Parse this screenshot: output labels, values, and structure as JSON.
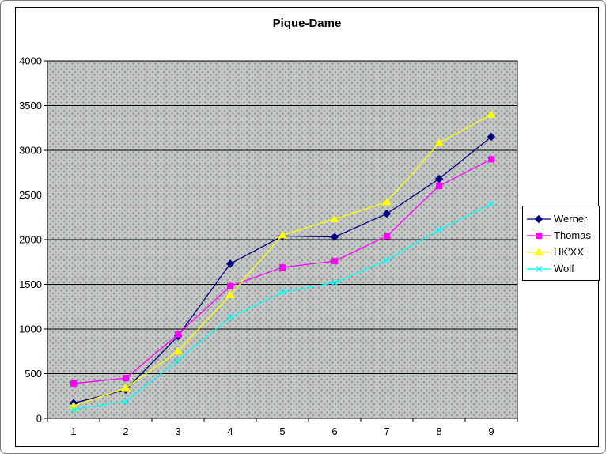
{
  "page": {
    "background": "#ffffff",
    "outer_border_color": "#7a7a7a",
    "frame_border_color": "#000000"
  },
  "chart_data": {
    "type": "line",
    "title": "Pique-Dame",
    "categories": [
      "1",
      "2",
      "3",
      "4",
      "5",
      "6",
      "7",
      "8",
      "9"
    ],
    "series": [
      {
        "name": "Werner",
        "color": "#000080",
        "marker": "diamond",
        "values": [
          170,
          320,
          920,
          1730,
          2040,
          2030,
          2290,
          2680,
          3150
        ]
      },
      {
        "name": "Thomas",
        "color": "#ff00ff",
        "marker": "square",
        "values": [
          390,
          450,
          940,
          1480,
          1690,
          1760,
          2040,
          2600,
          2900
        ]
      },
      {
        "name": "HK'XX",
        "color": "#ffff00",
        "marker": "triangle",
        "values": [
          140,
          340,
          750,
          1380,
          2050,
          2230,
          2420,
          3080,
          3400
        ]
      },
      {
        "name": "Wolf",
        "color": "#00ffff",
        "marker": "x",
        "values": [
          100,
          190,
          650,
          1130,
          1410,
          1520,
          1770,
          2110,
          2400
        ]
      }
    ],
    "xlabel": "",
    "ylabel": "",
    "ylim": [
      0,
      4000
    ],
    "ytick_interval": 500,
    "ytick_labels": [
      "0",
      "500",
      "1000",
      "1500",
      "2000",
      "2500",
      "3000",
      "3500",
      "4000"
    ],
    "grid": true,
    "gridline_color": "#000000",
    "plot_background": "#c6c6c6",
    "legend_position": "right"
  }
}
